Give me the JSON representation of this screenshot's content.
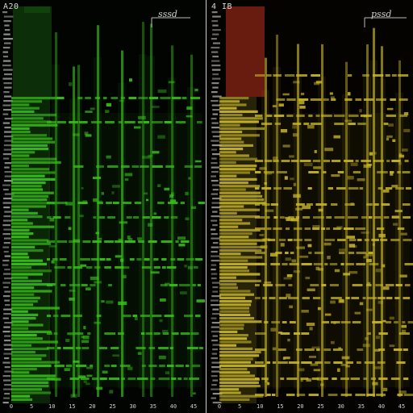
{
  "panels": [
    {
      "id": "green",
      "title": "A20",
      "legend": "sssd",
      "accent": "#39c21a",
      "header_color": "#1f6f14",
      "x_ticks": [
        "0",
        "5",
        "10",
        "15",
        "20",
        "25",
        "30",
        "35",
        "40",
        "45"
      ]
    },
    {
      "id": "yellow",
      "title": "4 IB",
      "legend": "pssd",
      "accent": "#c9b62a",
      "header_color": "#8a2414",
      "x_ticks": [
        "0",
        "5",
        "10",
        "15",
        "20",
        "25",
        "30",
        "35",
        "40",
        "45"
      ]
    }
  ]
}
